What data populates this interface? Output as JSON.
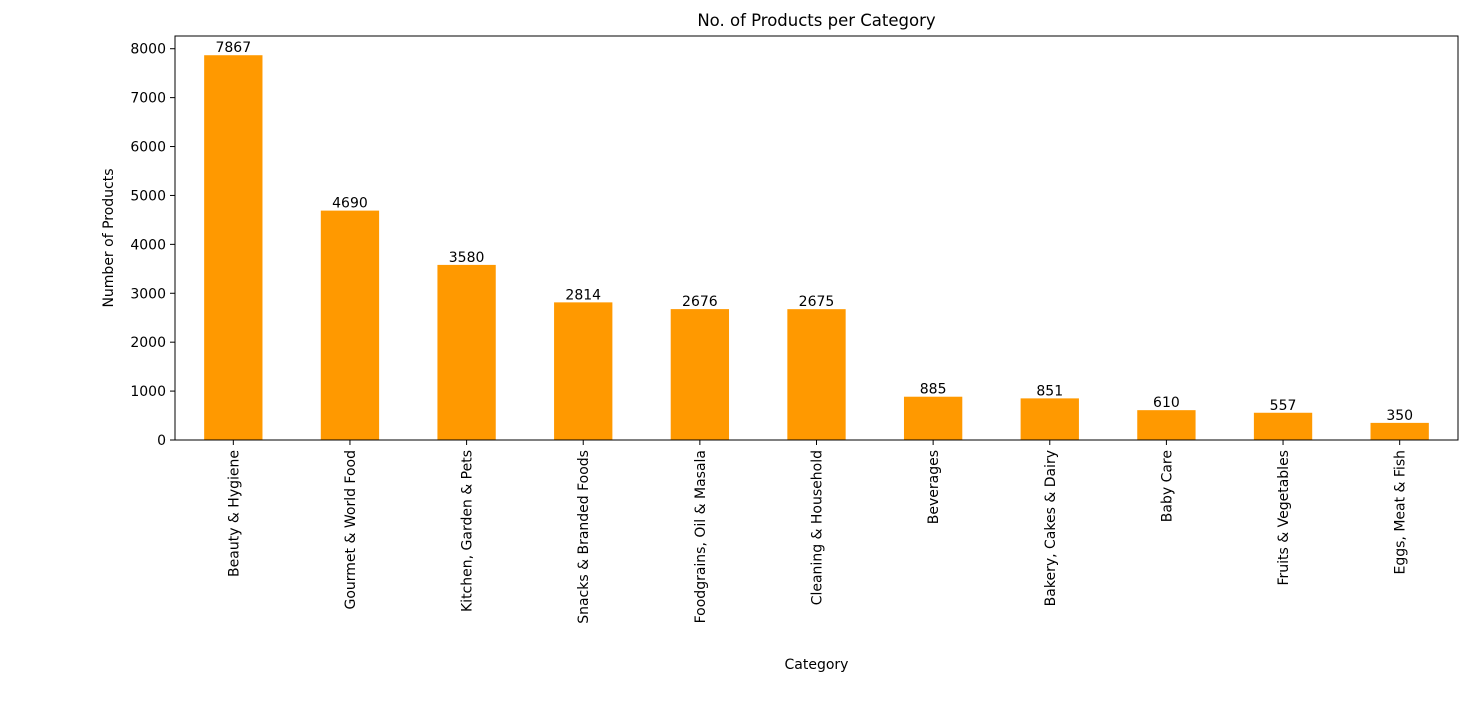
{
  "chart_data": {
    "type": "bar",
    "title": "No. of Products per Category",
    "xlabel": "Category",
    "ylabel": "Number of Products",
    "categories": [
      "Beauty & Hygiene",
      "Gourmet & World Food",
      "Kitchen, Garden & Pets",
      "Snacks & Branded Foods",
      "Foodgrains, Oil & Masala",
      "Cleaning & Household",
      "Beverages",
      "Bakery, Cakes & Dairy",
      "Baby Care",
      "Fruits & Vegetables",
      "Eggs, Meat & Fish"
    ],
    "values": [
      7867,
      4690,
      3580,
      2814,
      2676,
      2675,
      885,
      851,
      610,
      557,
      350
    ],
    "data_labels": [
      "7867",
      "4690",
      "3580",
      "2814",
      "2676",
      "2675",
      "885",
      "851",
      "610",
      "557",
      "350"
    ],
    "yticks": [
      0,
      1000,
      2000,
      3000,
      4000,
      5000,
      6000,
      7000,
      8000
    ],
    "ytick_labels": [
      "0",
      "1000",
      "2000",
      "3000",
      "4000",
      "5000",
      "6000",
      "7000",
      "8000"
    ],
    "ylim": [
      0,
      8260
    ],
    "bar_color": "#ff9900",
    "grid": false,
    "legend": "none",
    "xtick_rotation": "vertical"
  }
}
